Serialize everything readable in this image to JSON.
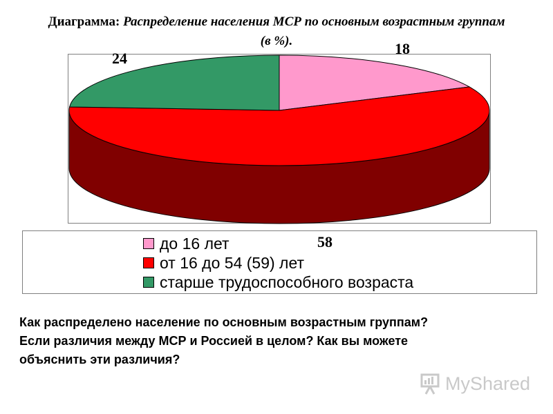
{
  "title": {
    "prefix": "Диаграмма:",
    "italic": "Распределение населения МСР по основным возрастным группам (в %)."
  },
  "chart_data": {
    "type": "pie",
    "title": "Диаграмма: Распределение населения МСР по основным возрастным группам (в %).",
    "categories": [
      "до 16 лет",
      "от 16 до 54 (59) лет",
      "старше трудоспособного возраста"
    ],
    "values": [
      18,
      58,
      24
    ],
    "colors": [
      "#ff99cc",
      "#ff0000",
      "#339966"
    ],
    "side_colors": [
      "#993366",
      "#800000",
      "#1f5c3d"
    ],
    "data_labels": [
      "18",
      "58",
      "24"
    ],
    "legend_position": "bottom",
    "style": "3d"
  },
  "legend": {
    "items": [
      {
        "label": "до 16 лет",
        "color": "#ff99cc"
      },
      {
        "label": "от 16 до 54 (59) лет",
        "color": "#ff0000"
      },
      {
        "label": "старше трудоспособного возраста",
        "color": "#339966"
      }
    ]
  },
  "questions": [
    "Как распределено население по основным возрастным группам?",
    "Если различия  между МСР и Россией в целом?  Как вы  можете",
    "объяснить эти различия?"
  ],
  "watermark": {
    "text": "MyShared",
    "icon": "presentation-board-icon"
  }
}
